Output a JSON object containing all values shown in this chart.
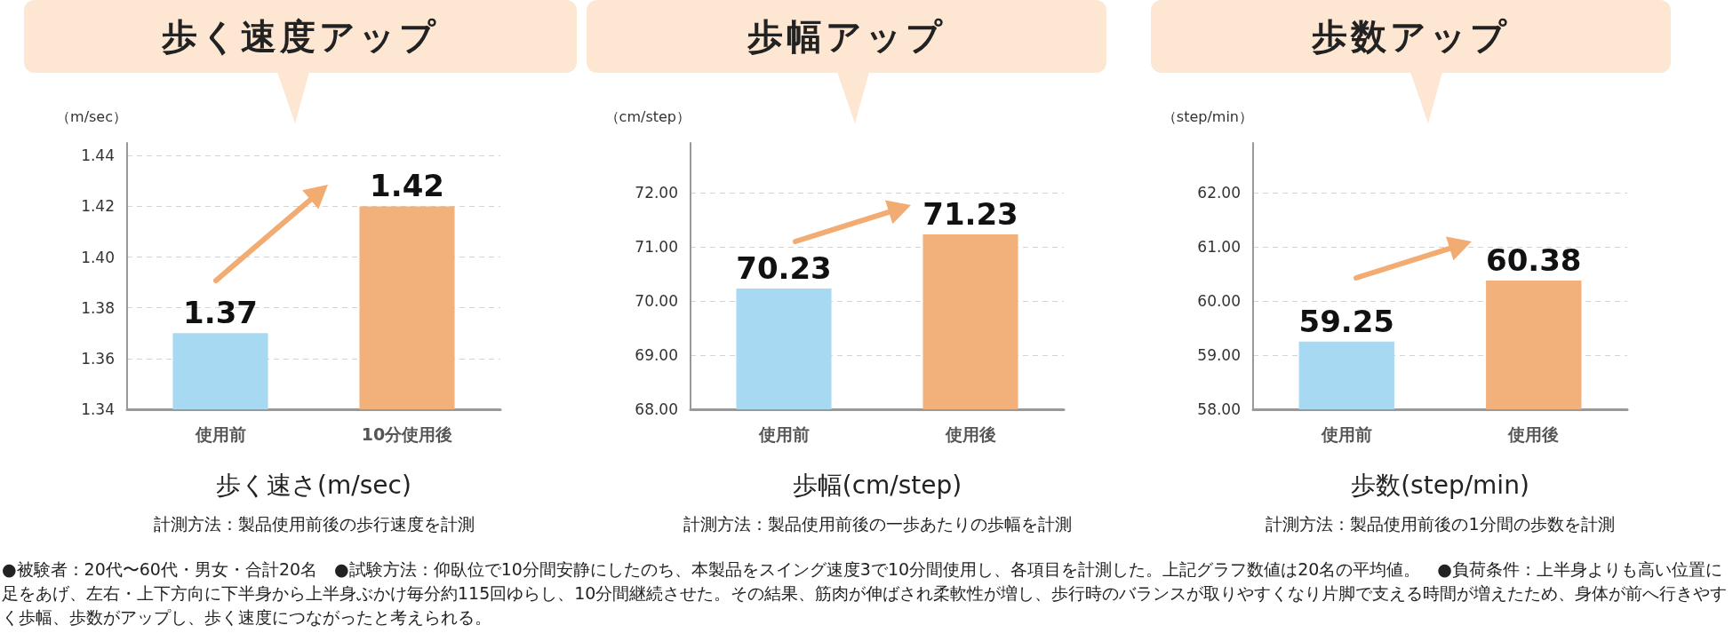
{
  "chart_data": [
    {
      "type": "bar",
      "title": "歩く速度アップ",
      "ylabel": "（m/sec）",
      "xlabel": "歩く速さ(m/sec)",
      "annotations": [
        "計測方法：製品使用前後の歩行速度を計測"
      ],
      "categories": [
        "使用前",
        "10分使用後"
      ],
      "values": [
        1.37,
        1.42
      ],
      "colors": [
        "#a8d9f2",
        "#f2b07a"
      ],
      "ylim": [
        1.34,
        1.445
      ],
      "yticks": [
        1.34,
        1.36,
        1.38,
        {
          "value": 1.4,
          "label": "1.40"
        },
        1.42,
        1.44
      ],
      "grid": "y",
      "data_labels": true
    },
    {
      "type": "bar",
      "title": "歩幅アップ",
      "ylabel": "（cm/step）",
      "xlabel": "歩幅(cm/step)",
      "annotations": [
        "計測方法：製品使用前後の一歩あたりの歩幅を計測"
      ],
      "categories": [
        "使用前",
        "使用後"
      ],
      "values": [
        70.23,
        71.23
      ],
      "colors": [
        "#a8d9f2",
        "#f2b07a"
      ],
      "ylim": [
        68,
        72.92
      ],
      "yticks": [
        {
          "value": 68,
          "label": "68.00"
        },
        {
          "value": 69,
          "label": "69.00"
        },
        {
          "value": 70,
          "label": "70.00"
        },
        {
          "value": 71,
          "label": "71.00"
        },
        {
          "value": 72,
          "label": "72.00"
        }
      ],
      "grid": "y",
      "data_labels": true
    },
    {
      "type": "bar",
      "title": "歩数アップ",
      "ylabel": "（step/min）",
      "xlabel": "歩数(step/min)",
      "annotations": [
        "計測方法：製品使用前後の1分間の歩数を計測",
        "●被験者：20代〜60代・男女・合計20名　●試験方法：仰臥位で10分間安静にしたのち、本製品をスイング速度3で10分間使用し、各項目を計測した。上記グラフ数値は20名の平均値。　●負荷条件：上半身よりも高い位置に足をあげ、左右・上下方向に下半身から上半身ぶかけ毎分約115回ゆらし、10分間継続させた。その結果、筋肉が伸ばされ柔軟性が増し、歩行時のバランスが取りやすくなり片脚で支える時間が増えたため、身体が前へ行きやすく歩幅、歩数がアップし、歩く速度につながったと考えられる。"
      ],
      "categories": [
        "使用前",
        "使用後"
      ],
      "values": [
        59.25,
        60.38
      ],
      "colors": [
        "#a8d9f2",
        "#f2b07a"
      ],
      "ylim": [
        58,
        62.92
      ],
      "yticks": [
        {
          "value": 58,
          "label": "58.00"
        },
        {
          "value": 59,
          "label": "59.00"
        },
        {
          "value": 60,
          "label": "60.00"
        },
        {
          "value": 61,
          "label": "61.00"
        },
        {
          "value": 62,
          "label": "62.00"
        }
      ],
      "grid": "y",
      "data_labels": true
    }
  ]
}
